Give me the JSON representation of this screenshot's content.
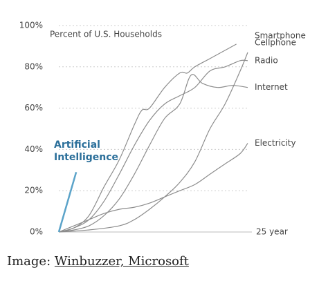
{
  "chart_data": {
    "type": "line",
    "subtitle": "Percent of U.S. Households",
    "ylim": [
      0,
      100
    ],
    "yticks": [
      {
        "value": 0,
        "label": "0%"
      },
      {
        "value": 20,
        "label": "20%"
      },
      {
        "value": 40,
        "label": "40%"
      },
      {
        "value": 60,
        "label": "60%"
      },
      {
        "value": 80,
        "label": "80%"
      },
      {
        "value": 100,
        "label": "100%"
      }
    ],
    "xlim": [
      0,
      25
    ],
    "xticks": [
      {
        "value": 25,
        "label": "25 year"
      }
    ],
    "grid": true,
    "series": [
      {
        "name": "Smartphone",
        "color": "#8c8c8c",
        "x": [
          0,
          2,
          4,
          6,
          8,
          10,
          11,
          12,
          14,
          16,
          17,
          18,
          20,
          22,
          23.5
        ],
        "values": [
          0,
          2,
          8,
          22,
          35,
          52,
          59,
          60,
          70,
          77,
          77,
          80,
          84,
          88,
          91
        ]
      },
      {
        "name": "Cellphone",
        "color": "#8c8c8c",
        "x": [
          0,
          4,
          8,
          10,
          12,
          14,
          16,
          18,
          20,
          22,
          24,
          25
        ],
        "values": [
          0,
          1,
          3,
          6,
          11,
          17,
          24,
          34,
          50,
          62,
          78,
          87
        ]
      },
      {
        "name": "Radio",
        "color": "#8c8c8c",
        "x": [
          0,
          2,
          4,
          6,
          8,
          10,
          12,
          14,
          16,
          18,
          20,
          22,
          24,
          25
        ],
        "values": [
          0,
          2,
          6,
          15,
          28,
          42,
          54,
          62,
          66,
          70,
          78,
          80,
          83,
          83
        ]
      },
      {
        "name": "Internet",
        "color": "#8c8c8c",
        "x": [
          0,
          2,
          4,
          6,
          8,
          10,
          12,
          14,
          16,
          17.5,
          19,
          21,
          23,
          25
        ],
        "values": [
          0,
          1,
          3,
          8,
          16,
          28,
          42,
          55,
          62,
          76,
          72,
          70,
          71,
          70
        ]
      },
      {
        "name": "Electricity",
        "color": "#8c8c8c",
        "x": [
          0,
          2,
          4,
          6,
          8,
          10,
          12,
          14,
          16,
          18,
          20,
          22,
          24,
          25
        ],
        "values": [
          0,
          3,
          6,
          9,
          11,
          12,
          14,
          17,
          20,
          23,
          28,
          33,
          38,
          43
        ]
      },
      {
        "name": "Artificial Intelligence",
        "color": "#5ba3c9",
        "label_color": "#2b6f9a",
        "x": [
          0,
          2.3
        ],
        "values": [
          0,
          29
        ]
      }
    ]
  },
  "caption": {
    "prefix": "Image:",
    "link": "Winbuzzer, Microsoft"
  }
}
